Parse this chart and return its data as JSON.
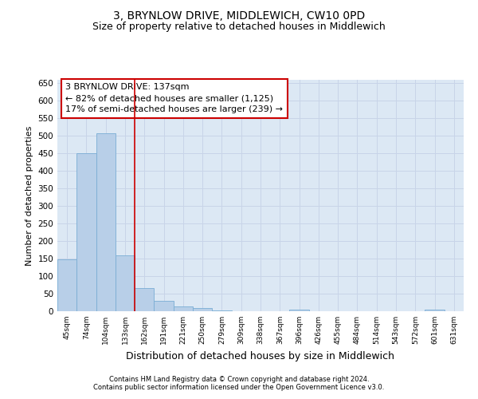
{
  "title": "3, BRYNLOW DRIVE, MIDDLEWICH, CW10 0PD",
  "subtitle": "Size of property relative to detached houses in Middlewich",
  "xlabel": "Distribution of detached houses by size in Middlewich",
  "ylabel": "Number of detached properties",
  "footer1": "Contains HM Land Registry data © Crown copyright and database right 2024.",
  "footer2": "Contains public sector information licensed under the Open Government Licence v3.0.",
  "categories": [
    "45sqm",
    "74sqm",
    "104sqm",
    "133sqm",
    "162sqm",
    "191sqm",
    "221sqm",
    "250sqm",
    "279sqm",
    "309sqm",
    "338sqm",
    "367sqm",
    "396sqm",
    "426sqm",
    "455sqm",
    "484sqm",
    "514sqm",
    "543sqm",
    "572sqm",
    "601sqm",
    "631sqm"
  ],
  "values": [
    147,
    450,
    507,
    160,
    67,
    30,
    14,
    8,
    2,
    0,
    0,
    0,
    5,
    0,
    0,
    0,
    0,
    0,
    0,
    5,
    0
  ],
  "bar_color": "#b8cfe8",
  "bar_edge_color": "#7aadd4",
  "property_line_color": "#cc0000",
  "property_line_index": 3.5,
  "annotation_line1": "3 BRYNLOW DRIVE: 137sqm",
  "annotation_line2": "← 82% of detached houses are smaller (1,125)",
  "annotation_line3": "17% of semi-detached houses are larger (239) →",
  "annotation_box_color": "#cc0000",
  "annotation_box_bg": "#ffffff",
  "ylim": [
    0,
    660
  ],
  "yticks": [
    0,
    50,
    100,
    150,
    200,
    250,
    300,
    350,
    400,
    450,
    500,
    550,
    600,
    650
  ],
  "grid_color": "#c8d4e8",
  "bg_color": "#dce8f4",
  "title_fontsize": 10,
  "subtitle_fontsize": 9,
  "ylabel_fontsize": 8,
  "xlabel_fontsize": 9
}
